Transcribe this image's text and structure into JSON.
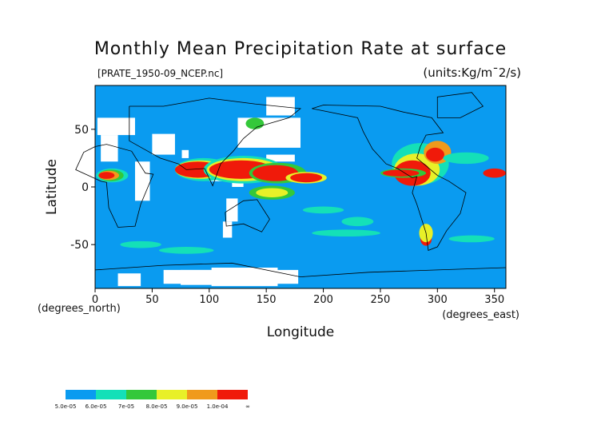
{
  "chart_data": {
    "type": "heatmap",
    "title": "Monthly Mean Precipitation Rate at surface",
    "subtitle_left": "[PRATE_1950-09_NCEP.nc]",
    "subtitle_right": "(units:Kg/m¯2/s)",
    "xlabel": "Longitude",
    "ylabel": "Latitude",
    "xunits": "(degrees_east)",
    "yunits": "(degrees_north)",
    "xlim": [
      0,
      360
    ],
    "ylim": [
      -88,
      88
    ],
    "xticks": [
      0,
      50,
      100,
      150,
      200,
      250,
      300,
      350
    ],
    "yticks": [
      50,
      0,
      -50
    ],
    "legend": {
      "placement": "bottom-left",
      "labels": [
        "5.0e-05",
        "6.0e-05",
        "7e-05",
        "8.0e-05",
        "9.0e-05",
        "1.0e-04",
        "∞"
      ],
      "colors": [
        "#0a9bf0",
        "#14e0b8",
        "#34c83a",
        "#e8f028",
        "#f09a1c",
        "#f01a0a"
      ]
    },
    "colors": {
      "background_field": "#0a9bf0",
      "missing": "#ffffff",
      "coastline": "#000000",
      "cyan_band": "#14e0b8",
      "green_band": "#34c83a",
      "yellow_band": "#e8f028",
      "orange_band": "#f09a1c",
      "red_band": "#f01a0a"
    }
  }
}
